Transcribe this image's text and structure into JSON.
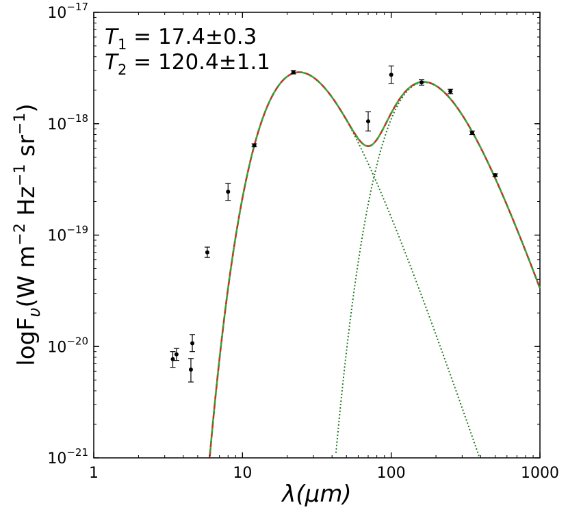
{
  "chart_data": {
    "type": "scatter",
    "title": "",
    "xlabel": "λ(μm)",
    "ylabel": "logF",
    "ylabel_sub": "υ",
    "ylabel_units": "(W m",
    "ylabel_units_exp1": "−2",
    "ylabel_units_mid": " Hz",
    "ylabel_units_exp2": "−1",
    "ylabel_units_end": " sr",
    "ylabel_units_exp3": "−1",
    "ylabel_units_close": ")",
    "x_scale": "log",
    "y_scale": "log",
    "xlim": [
      1,
      1000
    ],
    "ylim": [
      1e-21,
      1e-17
    ],
    "x_ticks": [
      {
        "value": 1,
        "label": "1"
      },
      {
        "value": 10,
        "label": "10"
      },
      {
        "value": 100,
        "label": "100"
      },
      {
        "value": 1000,
        "label": "1000"
      }
    ],
    "y_ticks": [
      {
        "value": 1e-21,
        "base": "10",
        "exp": "−21"
      },
      {
        "value": 1e-20,
        "base": "10",
        "exp": "−20"
      },
      {
        "value": 1e-19,
        "base": "10",
        "exp": "−19"
      },
      {
        "value": 1e-18,
        "base": "10",
        "exp": "−18"
      },
      {
        "value": 1e-17,
        "base": "10",
        "exp": "−17"
      }
    ],
    "grid": false,
    "annotations": [
      {
        "symbol": "T",
        "sub": "1",
        "text": " = 17.4±0.3"
      },
      {
        "symbol": "T",
        "sub": "2",
        "text": " = 120.4±1.1"
      }
    ],
    "colors": {
      "data": "#000000",
      "total_fit": "#d62728",
      "component_dash": "#2ca02c",
      "components": "#1f7a1f"
    },
    "data_points": [
      {
        "x": 3.4,
        "y": 7.7e-21,
        "ylo": 6.5e-21,
        "yhi": 9e-21
      },
      {
        "x": 3.6,
        "y": 8.5e-21,
        "ylo": 7.5e-21,
        "yhi": 9.6e-21
      },
      {
        "x": 4.5,
        "y": 6.2e-21,
        "ylo": 4.8e-21,
        "yhi": 7.8e-21
      },
      {
        "x": 4.6,
        "y": 1.07e-20,
        "ylo": 9e-21,
        "yhi": 1.28e-20
      },
      {
        "x": 5.8,
        "y": 7e-20,
        "ylo": 6.3e-20,
        "yhi": 7.8e-20
      },
      {
        "x": 8.0,
        "y": 2.45e-19,
        "ylo": 2.05e-19,
        "yhi": 2.9e-19
      },
      {
        "x": 12,
        "y": 6.4e-19,
        "ylo": 6.2e-19,
        "yhi": 6.6e-19
      },
      {
        "x": 22,
        "y": 2.9e-18,
        "ylo": 2.8e-18,
        "yhi": 3e-18
      },
      {
        "x": 70,
        "y": 1.05e-18,
        "ylo": 8.6e-19,
        "yhi": 1.28e-18
      },
      {
        "x": 100,
        "y": 2.75e-18,
        "ylo": 2.3e-18,
        "yhi": 3.3e-18
      },
      {
        "x": 160,
        "y": 2.35e-18,
        "ylo": 2.22e-18,
        "yhi": 2.48e-18
      },
      {
        "x": 250,
        "y": 1.95e-18,
        "ylo": 1.86e-18,
        "yhi": 2.04e-18
      },
      {
        "x": 350,
        "y": 8.3e-19,
        "ylo": 8e-19,
        "yhi": 8.6e-19
      },
      {
        "x": 500,
        "y": 3.45e-19,
        "ylo": 3.35e-19,
        "yhi": 3.55e-19
      }
    ],
    "components": [
      {
        "T": 120.4,
        "peak_x": 24,
        "peak_y": 2.9e-18
      },
      {
        "T": 17.4,
        "peak_x": 165,
        "peak_y": 2.35e-18
      }
    ]
  }
}
